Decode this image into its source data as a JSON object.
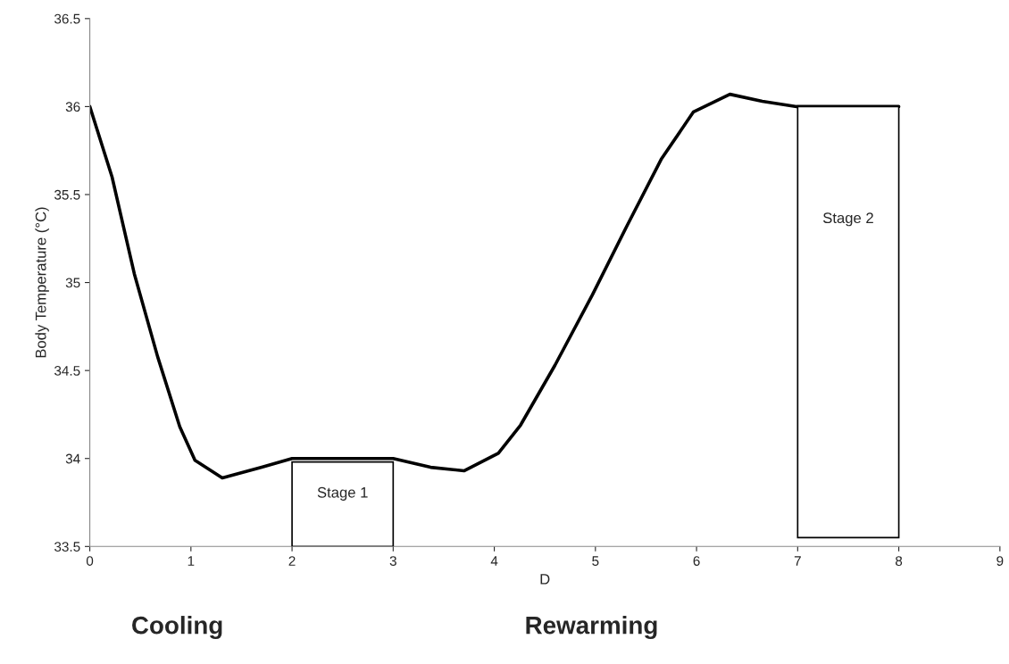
{
  "chart_data": {
    "type": "line",
    "xlabel": "D",
    "ylabel": "Body Temperature (°C)",
    "xlim": [
      0,
      9
    ],
    "xticks": [
      0,
      1,
      2,
      3,
      4,
      5,
      6,
      7,
      8,
      9
    ],
    "ylim": [
      33.5,
      36.5
    ],
    "yticks": [
      33.5,
      34,
      34.5,
      35,
      35.5,
      36,
      36.5
    ],
    "grid": false,
    "legend": false,
    "marker": "none",
    "line_style": "solid",
    "series": [
      {
        "color": "#000000",
        "x": [
          0,
          0.22,
          0.44,
          0.67,
          0.89,
          1.04,
          1.31,
          1.7,
          2.0,
          3.0,
          3.37,
          3.7,
          4.04,
          4.26,
          4.6,
          4.97,
          5.31,
          5.65,
          5.97,
          6.33,
          6.65,
          6.99,
          8.0
        ],
        "values": [
          36.0,
          35.6,
          35.05,
          34.58,
          34.18,
          33.99,
          33.89,
          33.95,
          34.0,
          34.0,
          33.95,
          33.93,
          34.03,
          34.19,
          34.53,
          34.93,
          35.32,
          35.7,
          35.97,
          36.07,
          36.03,
          36.0,
          36.0
        ]
      },
      {
        "type": "bar",
        "color": "#ffffff",
        "x": [
          2.5,
          7.5
        ],
        "base": [
          33.5,
          33.55
        ],
        "values": [
          0.48,
          2.45
        ]
      }
    ],
    "annotations": [
      "Stage 1",
      "Stage 2",
      "Cooling",
      "Rewarming"
    ]
  }
}
